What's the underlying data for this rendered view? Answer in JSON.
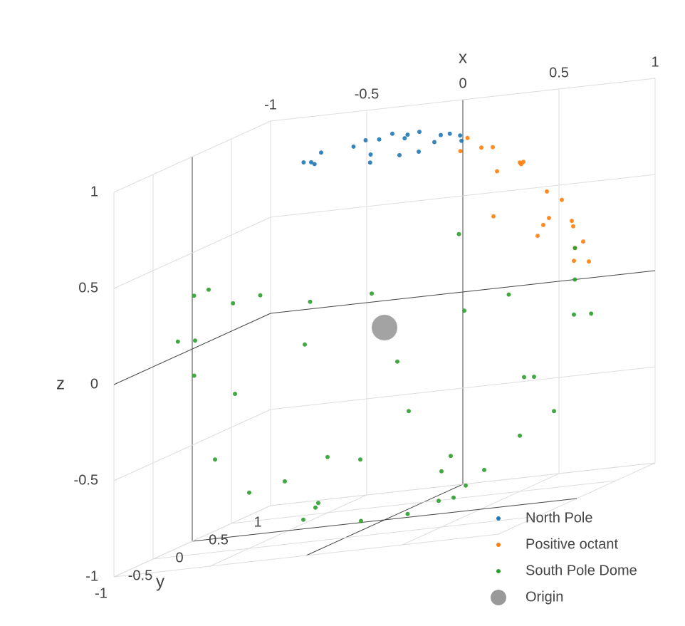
{
  "chart_data": {
    "type": "scatter3d",
    "xaxis_title": "x",
    "yaxis_title": "y",
    "zaxis_title": "z",
    "xlim": [
      -1,
      1
    ],
    "ylim": [
      -1,
      1
    ],
    "zlim": [
      -1,
      1
    ],
    "xticks": [
      -1,
      -0.5,
      0,
      0.5,
      1
    ],
    "yticks": [
      -1,
      -0.5,
      0,
      0.5,
      1
    ],
    "zticks": [
      -1,
      -0.5,
      0,
      0.5,
      1
    ],
    "grid": true,
    "legend_position": "bottom right",
    "series": [
      {
        "name": "North Pole",
        "color": "#1f77b4",
        "marker_size": 3,
        "x": [
          0.1,
          -0.2,
          0.3,
          -0.35,
          0.05,
          0.25,
          -0.1,
          0.38,
          -0.3,
          0.15,
          0.0,
          -0.15,
          0.2,
          -0.25,
          0.32,
          0.08,
          -0.05,
          0.12,
          -0.38,
          0.28
        ],
        "y": [
          0.2,
          0.25,
          -0.1,
          0.05,
          -0.3,
          0.22,
          -0.15,
          0.05,
          -0.2,
          0.35,
          0.1,
          0.3,
          -0.3,
          -0.28,
          0.18,
          -0.38,
          0.38,
          0.0,
          -0.1,
          -0.25
        ],
        "z": [
          0.97,
          0.95,
          0.95,
          0.94,
          0.95,
          0.94,
          0.98,
          0.92,
          0.93,
          0.92,
          0.99,
          0.94,
          0.93,
          0.93,
          0.93,
          0.92,
          0.92,
          0.99,
          0.92,
          0.93
        ]
      },
      {
        "name": "Positive octant",
        "color": "#ff7f0e",
        "marker_size": 3,
        "x": [
          0.6,
          0.8,
          0.5,
          0.3,
          0.9,
          0.4,
          0.7,
          0.2,
          0.95,
          0.6,
          0.3,
          0.75,
          0.5,
          0.85,
          0.45,
          0.65,
          0.15,
          0.55,
          0.9,
          0.35
        ],
        "y": [
          0.6,
          0.3,
          0.8,
          0.5,
          0.2,
          0.4,
          0.7,
          0.9,
          0.1,
          0.3,
          0.7,
          0.55,
          0.5,
          0.45,
          0.85,
          0.15,
          0.6,
          0.75,
          0.4,
          0.2
        ],
        "z": [
          0.53,
          0.52,
          0.33,
          0.81,
          0.39,
          0.82,
          0.14,
          0.39,
          0.29,
          0.74,
          0.65,
          0.37,
          0.71,
          0.27,
          0.27,
          0.75,
          0.79,
          0.37,
          0.17,
          0.91
        ]
      },
      {
        "name": "South Pole Dome",
        "color": "#2ca02c",
        "marker_size": 3,
        "x": [
          0.1,
          -0.9,
          0.9,
          0.5,
          -0.5,
          -0.5,
          0.5,
          -0.95,
          0.95,
          0,
          0,
          -0.7,
          0.7,
          -0.7,
          0.7,
          -0.3,
          0.3,
          -0.99,
          0.99,
          0,
          -0.2,
          0.2,
          -0.8,
          0.8,
          -0.65,
          0.3,
          -0.3,
          0.6,
          -0.6,
          0.4,
          -0.45,
          0.85,
          -0.85,
          0.2,
          -0.1,
          0.1,
          -0.4,
          0.4,
          0.92,
          -0.92
        ],
        "y": [
          0.05,
          0.3,
          -0.3,
          0.5,
          -0.5,
          0.5,
          -0.5,
          -0.1,
          0.1,
          -0.95,
          0.95,
          -0.7,
          -0.7,
          0.7,
          0.7,
          -0.3,
          0.3,
          0,
          0,
          -0.3,
          0.8,
          -0.8,
          -0.2,
          0.2,
          -0.65,
          -0.9,
          0.9,
          -0.2,
          0.2,
          0.8,
          -0.83,
          -0.5,
          0.5,
          0.2,
          -0.6,
          0.6,
          0.1,
          -0.1,
          0.38,
          -0.38
        ],
        "z": [
          -0.99,
          -0.3,
          -0.3,
          -0.71,
          -0.71,
          -0.71,
          -0.71,
          0.29,
          0.29,
          0.31,
          0.31,
          0.14,
          0.14,
          -0.14,
          -0.14,
          -0.91,
          -0.91,
          -0.14,
          0.14,
          -0.95,
          -0.56,
          -0.56,
          -0.56,
          -0.56,
          0.39,
          0.31,
          -0.31,
          -0.77,
          -0.77,
          -0.45,
          0.33,
          0.17,
          0.17,
          -0.96,
          -0.79,
          -0.79,
          -0.91,
          -0.91,
          -0.1,
          0.1
        ]
      },
      {
        "name": "Origin",
        "color": "#999999",
        "marker_size": 18,
        "x": [
          0
        ],
        "y": [
          0
        ],
        "z": [
          0
        ]
      }
    ]
  }
}
